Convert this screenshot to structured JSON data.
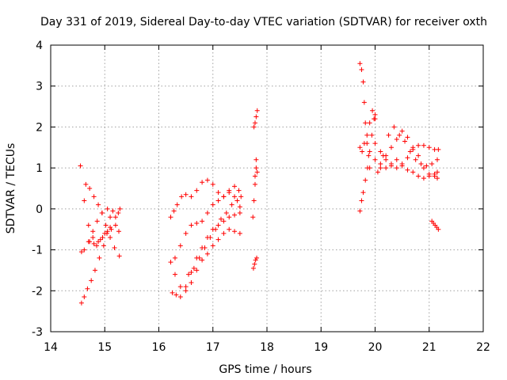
{
  "chart_data": {
    "type": "scatter",
    "title": "Day 331 of 2019, Sidereal Day-to-day VTEC variation (SDTVAR) for receiver oxth",
    "xlabel": "GPS time / hours",
    "ylabel": "SDTVAR / TECUs",
    "xlim": [
      14,
      22
    ],
    "ylim": [
      -3,
      4
    ],
    "xticks": [
      "14",
      "15",
      "16",
      "17",
      "18",
      "19",
      "20",
      "21",
      "22"
    ],
    "yticks": [
      "-3",
      "-2",
      "-1",
      "0",
      "1",
      "2",
      "3",
      "4"
    ],
    "grid": true,
    "marker": "+",
    "color": "#ff0000",
    "series": [
      {
        "name": "seg-a1",
        "x": [
          14.55,
          14.62,
          14.7,
          14.78,
          14.85,
          14.92,
          15.0,
          15.1,
          15.2,
          15.28
        ],
        "y": [
          1.05,
          0.2,
          -0.4,
          -0.7,
          -0.9,
          -0.75,
          -0.6,
          -0.45,
          -0.2,
          0.0
        ]
      },
      {
        "name": "seg-a2",
        "x": [
          14.57,
          14.62,
          14.68,
          14.75,
          14.82,
          14.9,
          14.98,
          15.05,
          15.1
        ],
        "y": [
          -2.3,
          -2.15,
          -1.95,
          -1.75,
          -1.5,
          -1.2,
          -0.9,
          -0.55,
          -0.2
        ]
      },
      {
        "name": "seg-a3",
        "x": [
          14.57,
          14.62,
          14.7,
          14.78,
          14.86,
          14.95,
          15.05,
          15.15,
          15.25
        ],
        "y": [
          -1.05,
          -1.0,
          -0.8,
          -0.55,
          -0.3,
          -0.1,
          0.0,
          -0.05,
          -0.1
        ]
      },
      {
        "name": "seg-a4",
        "x": [
          14.65,
          14.72,
          14.8,
          14.88,
          14.95,
          15.02,
          15.1,
          15.18,
          15.27
        ],
        "y": [
          0.6,
          0.5,
          0.3,
          0.1,
          -0.1,
          -0.4,
          -0.7,
          -0.95,
          -1.15
        ]
      },
      {
        "name": "seg-a5",
        "x": [
          14.72,
          14.8,
          14.88,
          14.96,
          15.04,
          15.12,
          15.2,
          15.26
        ],
        "y": [
          -0.8,
          -0.85,
          -0.8,
          -0.7,
          -0.6,
          -0.5,
          -0.4,
          -0.55
        ]
      },
      {
        "name": "seg-b1",
        "x": [
          16.22,
          16.3,
          16.4,
          16.5,
          16.6,
          16.7,
          16.8,
          16.9,
          17.0,
          17.1,
          17.2,
          17.3,
          17.4,
          17.5
        ],
        "y": [
          -1.3,
          -1.6,
          -1.9,
          -2.0,
          -1.8,
          -1.5,
          -1.25,
          -1.1,
          -0.9,
          -0.75,
          -0.6,
          -0.5,
          -0.55,
          -0.6
        ]
      },
      {
        "name": "seg-b2",
        "x": [
          16.25,
          16.32,
          16.4,
          16.5,
          16.6,
          16.7,
          16.8,
          16.9,
          17.0,
          17.1,
          17.2,
          17.3,
          17.4,
          17.5
        ],
        "y": [
          -2.05,
          -2.1,
          -2.15,
          -1.9,
          -1.55,
          -1.2,
          -0.95,
          -0.7,
          -0.5,
          -0.4,
          -0.3,
          -0.2,
          -0.15,
          -0.1
        ]
      },
      {
        "name": "seg-b3",
        "x": [
          16.22,
          16.28,
          16.34,
          16.42,
          16.5,
          16.6,
          16.7,
          16.8,
          16.9,
          17.0,
          17.1,
          17.2,
          17.3,
          17.4,
          17.48
        ],
        "y": [
          -0.2,
          -0.05,
          0.1,
          0.3,
          0.35,
          0.3,
          0.45,
          0.65,
          0.7,
          0.6,
          0.4,
          0.3,
          0.4,
          0.55,
          0.45
        ]
      },
      {
        "name": "seg-b4",
        "x": [
          16.3,
          16.4,
          16.5,
          16.6,
          16.7,
          16.8,
          16.9,
          17.0,
          17.1,
          17.2,
          17.3,
          17.4,
          17.5
        ],
        "y": [
          -1.2,
          -0.9,
          -0.6,
          -0.4,
          -0.35,
          -0.3,
          -0.1,
          0.1,
          0.2,
          0.3,
          0.45,
          0.3,
          0.05
        ]
      },
      {
        "name": "seg-b5",
        "x": [
          16.55,
          16.65,
          16.75,
          16.85,
          16.95,
          17.05,
          17.15,
          17.25,
          17.35,
          17.45,
          17.52
        ],
        "y": [
          -1.6,
          -1.45,
          -1.2,
          -0.95,
          -0.7,
          -0.5,
          -0.25,
          -0.1,
          0.1,
          0.2,
          0.3
        ]
      },
      {
        "name": "seg-b6",
        "x": [
          17.75,
          17.77,
          17.79,
          17.81,
          17.78,
          17.8
        ],
        "y": [
          -1.45,
          -1.35,
          -1.25,
          -1.2,
          0.8,
          1.2
        ]
      },
      {
        "name": "seg-b7",
        "x": [
          17.74,
          17.76,
          17.78,
          17.8,
          17.82
        ],
        "y": [
          -0.2,
          0.2,
          0.6,
          1.0,
          0.9
        ]
      },
      {
        "name": "seg-b8",
        "x": [
          17.76,
          17.78,
          17.8,
          17.82
        ],
        "y": [
          2.0,
          2.1,
          2.25,
          2.4
        ]
      },
      {
        "name": "seg-c1",
        "x": [
          19.72,
          19.75,
          19.78,
          19.8,
          19.82,
          19.85,
          19.88,
          19.9
        ],
        "y": [
          3.55,
          3.4,
          3.1,
          2.6,
          2.1,
          1.6,
          1.3,
          1.0
        ]
      },
      {
        "name": "seg-c2",
        "x": [
          19.72,
          19.75,
          19.78,
          19.82,
          19.86,
          19.9,
          19.94,
          19.98,
          20.0
        ],
        "y": [
          -0.05,
          0.2,
          0.4,
          0.7,
          1.0,
          1.4,
          1.8,
          2.2,
          2.3
        ]
      },
      {
        "name": "seg-c3",
        "x": [
          19.72,
          19.76,
          19.8,
          19.85,
          19.9,
          19.95,
          20.0
        ],
        "y": [
          1.5,
          1.4,
          1.6,
          1.8,
          2.1,
          2.4,
          2.2
        ]
      },
      {
        "name": "seg-c4",
        "x": [
          20.0,
          20.1,
          20.2,
          20.3,
          20.4,
          20.5,
          20.6,
          20.7,
          20.8,
          20.9,
          21.0,
          21.1,
          21.17
        ],
        "y": [
          1.6,
          1.4,
          1.2,
          1.05,
          1.0,
          1.1,
          1.25,
          1.45,
          1.55,
          1.55,
          1.5,
          1.45,
          1.45
        ]
      },
      {
        "name": "seg-c5",
        "x": [
          20.0,
          20.1,
          20.2,
          20.3,
          20.4,
          20.5,
          20.6,
          20.7,
          20.8,
          20.9,
          21.0,
          21.1,
          21.15
        ],
        "y": [
          1.2,
          1.0,
          1.0,
          1.1,
          1.2,
          1.05,
          0.95,
          0.9,
          0.8,
          0.75,
          0.8,
          0.85,
          0.9
        ]
      },
      {
        "name": "seg-c6",
        "x": [
          20.05,
          20.15,
          20.25,
          20.35,
          20.45,
          20.55,
          20.65,
          20.75,
          20.85,
          20.95,
          21.05,
          21.15
        ],
        "y": [
          0.9,
          1.3,
          1.8,
          2.0,
          1.8,
          1.65,
          1.4,
          1.2,
          1.1,
          1.05,
          1.1,
          1.2
        ]
      },
      {
        "name": "seg-c7",
        "x": [
          20.1,
          20.2,
          20.3,
          20.4,
          20.5,
          20.6,
          20.7,
          20.8,
          20.9,
          21.0,
          21.1,
          21.15
        ],
        "y": [
          1.1,
          1.3,
          1.5,
          1.7,
          1.9,
          1.75,
          1.5,
          1.3,
          1.0,
          0.85,
          0.8,
          0.75
        ]
      },
      {
        "name": "seg-c8",
        "x": [
          21.05,
          21.08,
          21.11,
          21.14,
          21.17
        ],
        "y": [
          -0.3,
          -0.35,
          -0.4,
          -0.45,
          -0.5
        ]
      }
    ]
  }
}
